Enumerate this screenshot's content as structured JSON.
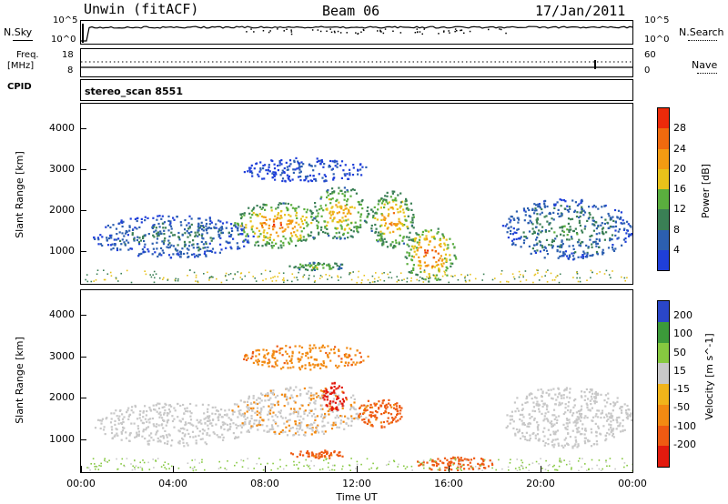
{
  "header": {
    "station": "Unwin (fitACF)",
    "beam": "Beam 06",
    "date": "17/Jan/2011"
  },
  "strips": {
    "nsky_label": "N.Sky",
    "nsky_top": "10^5",
    "nsky_bottom": "10^0",
    "nsearch_label": "N.Search",
    "nsearch_top": "10^5",
    "nsearch_bottom": "10^0",
    "freq_label_1": "Freq.",
    "freq_label_2": "[MHz]",
    "freq_top": "18",
    "freq_bottom": "8",
    "nave_label": "Nave",
    "nave_top": "60",
    "nave_bottom": "0",
    "cpid_label": "CPID",
    "cpid_value": "stereo_scan 8551"
  },
  "colors": {
    "power": [
      "#1f3fd9",
      "#2c5fb0",
      "#3a7f55",
      "#5aae3e",
      "#e8c21a",
      "#f39b12",
      "#f06a0e",
      "#ec2a0a"
    ],
    "velocity": [
      "#e21a0e",
      "#ee5a12",
      "#f28a12",
      "#f1b41a",
      "#c8c8c8",
      "#86c940",
      "#3c9a3a",
      "#2a46c8"
    ]
  },
  "chart_data": [
    {
      "type": "heatmap",
      "name": "power",
      "ylabel": "Slant Range [km]",
      "xlabel": "Time UT",
      "x_ticks": [
        "00:00",
        "04:00",
        "08:00",
        "12:00",
        "16:00",
        "20:00",
        "00:00"
      ],
      "x_range_hours": [
        0,
        24
      ],
      "y_ticks": [
        1000,
        2000,
        3000,
        4000
      ],
      "ylim": [
        200,
        4600
      ],
      "colorbar": {
        "label": "Power [dB]",
        "ticks": [
          4,
          8,
          12,
          16,
          20,
          24,
          28
        ],
        "range": [
          0,
          32
        ]
      },
      "echo_regions": [
        {
          "t0": 0.5,
          "t1": 7.5,
          "r_low": 850,
          "r_high": 1900,
          "peak_db": 10
        },
        {
          "t0": 6.5,
          "t1": 10.5,
          "r_low": 1100,
          "r_high": 2200,
          "peak_db": 28
        },
        {
          "t0": 10.0,
          "t1": 12.5,
          "r_low": 1300,
          "r_high": 2600,
          "peak_db": 24
        },
        {
          "t0": 12.5,
          "t1": 14.5,
          "r_low": 1100,
          "r_high": 2500,
          "peak_db": 26
        },
        {
          "t0": 14.0,
          "t1": 16.3,
          "r_low": 250,
          "r_high": 1600,
          "peak_db": 30
        },
        {
          "t0": 9.0,
          "t1": 11.5,
          "r_low": 550,
          "r_high": 750,
          "peak_db": 20
        },
        {
          "t0": 18.3,
          "t1": 24.0,
          "r_low": 800,
          "r_high": 2300,
          "peak_db": 12
        },
        {
          "t0": 7.0,
          "t1": 12.5,
          "r_low": 2700,
          "r_high": 3300,
          "peak_db": 6
        }
      ]
    },
    {
      "type": "heatmap",
      "name": "velocity",
      "ylabel": "Slant Range [km]",
      "xlabel": "Time UT",
      "x_ticks": [
        "00:00",
        "04:00",
        "08:00",
        "12:00",
        "16:00",
        "20:00",
        "00:00"
      ],
      "x_range_hours": [
        0,
        24
      ],
      "y_ticks": [
        1000,
        2000,
        3000,
        4000
      ],
      "ylim": [
        200,
        4600
      ],
      "colorbar": {
        "label": "Velocity [m s^-1]",
        "ticks": [
          200,
          100,
          50,
          15,
          -15,
          -50,
          -100,
          -200
        ]
      },
      "echo_regions": [
        {
          "t0": 0.5,
          "t1": 7.5,
          "r_low": 850,
          "r_high": 1900,
          "velocity": 0
        },
        {
          "t0": 6.5,
          "t1": 12.5,
          "r_low": 1100,
          "r_high": 2300,
          "velocity": -10
        },
        {
          "t0": 10.5,
          "t1": 11.5,
          "r_low": 1700,
          "r_high": 2400,
          "velocity": -200
        },
        {
          "t0": 12.0,
          "t1": 14.0,
          "r_low": 1300,
          "r_high": 2000,
          "velocity": -60
        },
        {
          "t0": 14.5,
          "t1": 18.0,
          "r_low": 250,
          "r_high": 600,
          "velocity": -70
        },
        {
          "t0": 9.0,
          "t1": 11.5,
          "r_low": 550,
          "r_high": 750,
          "velocity": -60
        },
        {
          "t0": 18.3,
          "t1": 24.0,
          "r_low": 800,
          "r_high": 2300,
          "velocity": 0
        },
        {
          "t0": 7.0,
          "t1": 12.5,
          "r_low": 2700,
          "r_high": 3300,
          "velocity": -40
        }
      ]
    }
  ]
}
